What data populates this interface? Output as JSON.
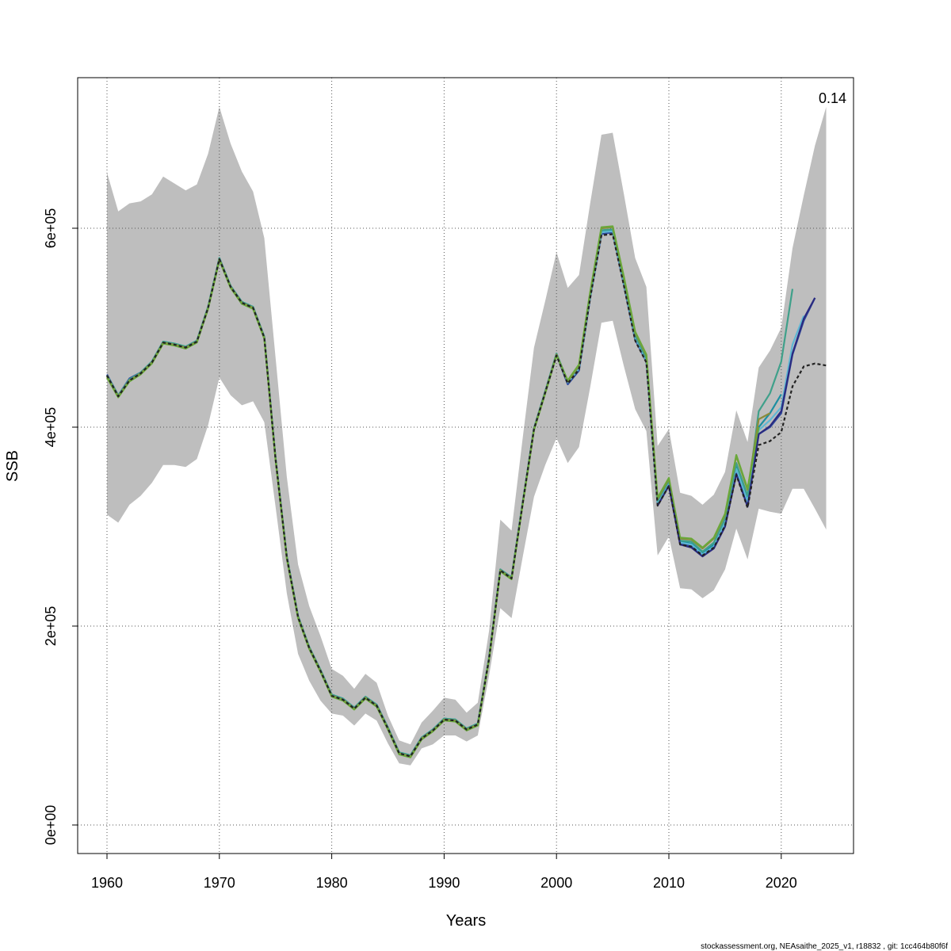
{
  "chart_data": {
    "type": "line",
    "xlabel": "Years",
    "ylabel": "SSB",
    "xlim": [
      1957.5,
      2026.5
    ],
    "ylim": [
      -30000,
      750000
    ],
    "x_ticks": [
      1960,
      1970,
      1980,
      1990,
      2000,
      2010,
      2020
    ],
    "x_tick_labels": [
      "1960",
      "1970",
      "1980",
      "1990",
      "2000",
      "2010",
      "2020"
    ],
    "y_ticks": [
      0,
      200000,
      400000,
      600000
    ],
    "y_tick_labels": [
      "0e+00",
      "2e+05",
      "4e+05",
      "6e+05"
    ],
    "grid": true,
    "annotation": "0.14",
    "credit": "stockassessment.org, NEAsaithe_2025_v1, r18832 , git: 1cc464b80f6f",
    "confidence_band": {
      "color": "#bebebe",
      "x": [
        1960,
        1961,
        1962,
        1963,
        1964,
        1965,
        1966,
        1967,
        1968,
        1969,
        1970,
        1971,
        1972,
        1973,
        1974,
        1975,
        1976,
        1977,
        1978,
        1979,
        1980,
        1981,
        1982,
        1983,
        1984,
        1985,
        1986,
        1987,
        1988,
        1989,
        1990,
        1991,
        1992,
        1993,
        1994,
        1995,
        1996,
        1997,
        1998,
        1999,
        2000,
        2001,
        2002,
        2003,
        2004,
        2005,
        2006,
        2007,
        2008,
        2009,
        2010,
        2011,
        2012,
        2013,
        2014,
        2015,
        2016,
        2017,
        2018,
        2019,
        2020,
        2021,
        2022,
        2023,
        2024
      ],
      "upper": [
        656000,
        617000,
        625000,
        627000,
        634000,
        652000,
        645000,
        638000,
        644000,
        675000,
        722000,
        685000,
        657000,
        637000,
        590000,
        470000,
        350000,
        262000,
        220000,
        190000,
        157000,
        150000,
        137000,
        152000,
        143000,
        110000,
        85000,
        81000,
        103000,
        115000,
        128000,
        126000,
        113000,
        123000,
        195000,
        307000,
        296000,
        390000,
        480000,
        527000,
        576000,
        540000,
        553000,
        625000,
        694000,
        696000,
        634000,
        570000,
        541000,
        381000,
        398000,
        334000,
        331000,
        322000,
        332000,
        355000,
        417000,
        385000,
        460000,
        477000,
        500000,
        580000,
        633000,
        683000,
        722000
      ],
      "lower": [
        312000,
        304000,
        322000,
        331000,
        344000,
        362000,
        362000,
        360000,
        368000,
        402000,
        450000,
        432000,
        422000,
        426000,
        405000,
        320000,
        233000,
        172000,
        145000,
        125000,
        112000,
        110000,
        100000,
        112000,
        105000,
        82000,
        62000,
        60000,
        77000,
        81000,
        90000,
        90000,
        84000,
        90000,
        150000,
        218000,
        208000,
        270000,
        330000,
        362000,
        389000,
        364000,
        380000,
        440000,
        505000,
        507000,
        461000,
        418000,
        396000,
        271000,
        290000,
        238000,
        237000,
        228000,
        236000,
        257000,
        298000,
        267000,
        318000,
        315000,
        313000,
        338000,
        338000,
        318000,
        297000
      ]
    },
    "series": [
      {
        "color": "#2f4b9e",
        "x": [
          1960,
          1961,
          1962,
          1963,
          1964,
          1965,
          1966,
          1967,
          1968,
          1969,
          1970,
          1971,
          1972,
          1973,
          1974,
          1975,
          1976,
          1977,
          1978,
          1979,
          1980,
          1981,
          1982,
          1983,
          1984,
          1985,
          1986,
          1987,
          1988,
          1989,
          1990,
          1991,
          1992,
          1993,
          1994,
          1995,
          1996,
          1997,
          1998,
          1999,
          2000,
          2001,
          2002,
          2003,
          2004,
          2005,
          2006,
          2007,
          2008,
          2009,
          2010,
          2011,
          2012,
          2013,
          2014,
          2015,
          2016,
          2017,
          2018,
          2019,
          2020,
          2021,
          2022,
          2023
        ],
        "values": [
          453000,
          432000,
          449000,
          455000,
          465000,
          485000,
          483000,
          480000,
          486000,
          521000,
          570000,
          541000,
          524000,
          520000,
          490000,
          368000,
          270000,
          210000,
          178000,
          156000,
          131000,
          127000,
          118000,
          128000,
          121000,
          98000,
          73000,
          70000,
          88000,
          96000,
          106000,
          106000,
          97000,
          102000,
          168000,
          257000,
          249000,
          325000,
          398000,
          436000,
          473000,
          443000,
          457000,
          530000,
          594000,
          596000,
          543000,
          488000,
          466000,
          322000,
          342000,
          283000,
          280000,
          271000,
          279000,
          302000,
          355000,
          322000,
          393000,
          400000,
          414000,
          473000,
          507000,
          530000
        ]
      },
      {
        "color": "#1d8fa1",
        "x": [
          1960,
          1961,
          1962,
          1963,
          1964,
          1965,
          1966,
          1967,
          1968,
          1969,
          1970,
          1971,
          1972,
          1973,
          1974,
          1975,
          1976,
          1977,
          1978,
          1979,
          1980,
          1981,
          1982,
          1983,
          1984,
          1985,
          1986,
          1987,
          1988,
          1989,
          1990,
          1991,
          1992,
          1993,
          1994,
          1995,
          1996,
          1997,
          1998,
          1999,
          2000,
          2001,
          2002,
          2003,
          2004,
          2005,
          2006,
          2007,
          2008,
          2009,
          2010,
          2011,
          2012,
          2013,
          2014,
          2015,
          2016,
          2017,
          2018,
          2019,
          2020
        ],
        "values": [
          452000,
          432000,
          448000,
          455000,
          466000,
          486000,
          484000,
          481000,
          487000,
          521000,
          570000,
          542000,
          526000,
          521000,
          491000,
          369000,
          270000,
          210000,
          179000,
          156000,
          131000,
          127000,
          118000,
          129000,
          121000,
          98000,
          73000,
          70000,
          88000,
          96000,
          107000,
          106000,
          97000,
          102000,
          168000,
          257000,
          249000,
          325000,
          399000,
          436000,
          474000,
          446000,
          460000,
          532000,
          597000,
          598000,
          546000,
          491000,
          468000,
          325000,
          345000,
          285000,
          283000,
          273000,
          282000,
          305000,
          360000,
          327000,
          400000,
          414000,
          433000
        ]
      },
      {
        "color": "#5fb7d4",
        "x": [
          1960,
          1961,
          1962,
          1963,
          1964,
          1965,
          1966,
          1967,
          1968,
          1969,
          1970,
          1971,
          1972,
          1973,
          1974,
          1975,
          1976,
          1977,
          1978,
          1979,
          1980,
          1981,
          1982,
          1983,
          1984,
          1985,
          1986,
          1987,
          1988,
          1989,
          1990,
          1991,
          1992,
          1993,
          1994,
          1995,
          1996,
          1997,
          1998,
          1999,
          2000,
          2001,
          2002,
          2003,
          2004,
          2005,
          2006,
          2007,
          2008,
          2009,
          2010,
          2011,
          2012,
          2013,
          2014,
          2015,
          2016,
          2017,
          2018,
          2019,
          2020,
          2021,
          2022
        ],
        "values": [
          452000,
          432000,
          448000,
          455000,
          466000,
          486000,
          484000,
          481000,
          487000,
          521000,
          570000,
          542000,
          526000,
          521000,
          491000,
          369000,
          270000,
          210000,
          179000,
          156000,
          131000,
          127000,
          118000,
          129000,
          121000,
          98000,
          73000,
          70000,
          88000,
          96000,
          107000,
          106000,
          97000,
          102000,
          168000,
          257000,
          249000,
          325000,
          399000,
          436000,
          474000,
          445000,
          459000,
          531000,
          596000,
          597000,
          545000,
          490000,
          467000,
          324000,
          344000,
          284000,
          282000,
          272000,
          280000,
          304000,
          358000,
          325000,
          397000,
          407000,
          420000,
          483000,
          512000
        ]
      },
      {
        "color": "#3fa08a",
        "x": [
          1960,
          1961,
          1962,
          1963,
          1964,
          1965,
          1966,
          1967,
          1968,
          1969,
          1970,
          1971,
          1972,
          1973,
          1974,
          1975,
          1976,
          1977,
          1978,
          1979,
          1980,
          1981,
          1982,
          1983,
          1984,
          1985,
          1986,
          1987,
          1988,
          1989,
          1990,
          1991,
          1992,
          1993,
          1994,
          1995,
          1996,
          1997,
          1998,
          1999,
          2000,
          2001,
          2002,
          2003,
          2004,
          2005,
          2006,
          2007,
          2008,
          2009,
          2010,
          2011,
          2012,
          2013,
          2014,
          2015,
          2016,
          2017,
          2018,
          2019,
          2020,
          2021
        ],
        "values": [
          452000,
          432000,
          448000,
          455000,
          466000,
          486000,
          484000,
          481000,
          487000,
          521000,
          570000,
          542000,
          526000,
          521000,
          491000,
          369000,
          270000,
          210000,
          179000,
          156000,
          131000,
          127000,
          118000,
          129000,
          121000,
          98000,
          73000,
          70000,
          88000,
          96000,
          107000,
          106000,
          97000,
          102000,
          168000,
          257000,
          249000,
          325000,
          399000,
          436000,
          474000,
          446000,
          461000,
          533000,
          598000,
          599000,
          547000,
          492000,
          469000,
          326000,
          346000,
          286000,
          285000,
          275000,
          284000,
          308000,
          364000,
          331000,
          416000,
          434000,
          466000,
          539000
        ]
      },
      {
        "color": "#8b8b3a",
        "x": [
          1960,
          1961,
          1962,
          1963,
          1964,
          1965,
          1966,
          1967,
          1968,
          1969,
          1970,
          1971,
          1972,
          1973,
          1974,
          1975,
          1976,
          1977,
          1978,
          1979,
          1980,
          1981,
          1982,
          1983,
          1984,
          1985,
          1986,
          1987,
          1988,
          1989,
          1990,
          1991,
          1992,
          1993,
          1994,
          1995,
          1996,
          1997,
          1998,
          1999,
          2000,
          2001,
          2002,
          2003,
          2004,
          2005,
          2006,
          2007,
          2008,
          2009,
          2010,
          2011,
          2012,
          2013,
          2014,
          2015,
          2016,
          2017,
          2018,
          2019
        ],
        "values": [
          451000,
          431000,
          447000,
          454000,
          465000,
          485000,
          483000,
          480000,
          486000,
          520000,
          569000,
          541000,
          525000,
          520000,
          490000,
          368000,
          269000,
          209000,
          178000,
          155000,
          130000,
          126000,
          117000,
          128000,
          120000,
          97000,
          72000,
          69000,
          87000,
          95000,
          106000,
          105000,
          96000,
          101000,
          167000,
          256000,
          248000,
          324000,
          398000,
          435000,
          473000,
          446000,
          462000,
          535000,
          600000,
          601000,
          550000,
          495000,
          472000,
          328000,
          348000,
          288000,
          287000,
          278000,
          288000,
          312000,
          371000,
          337000,
          408000,
          414000
        ]
      },
      {
        "color": "#6aa83a",
        "x": [
          1960,
          1961,
          1962,
          1963,
          1964,
          1965,
          1966,
          1967,
          1968,
          1969,
          1970,
          1971,
          1972,
          1973,
          1974,
          1975,
          1976,
          1977,
          1978,
          1979,
          1980,
          1981,
          1982,
          1983,
          1984,
          1985,
          1986,
          1987,
          1988,
          1989,
          1990,
          1991,
          1992,
          1993,
          1994,
          1995,
          1996,
          1997,
          1998,
          1999,
          2000,
          2001,
          2002,
          2003,
          2004,
          2005,
          2006,
          2007,
          2008,
          2009,
          2010,
          2011,
          2012,
          2013,
          2014,
          2015,
          2016,
          2017,
          2018
        ],
        "values": [
          450000,
          430000,
          446000,
          453000,
          464000,
          484000,
          482000,
          479000,
          485000,
          519000,
          568000,
          540000,
          524000,
          519000,
          489000,
          367000,
          268000,
          208000,
          177000,
          154000,
          129000,
          125000,
          116000,
          127000,
          119000,
          96000,
          71000,
          68000,
          86000,
          94000,
          105000,
          104000,
          95000,
          100000,
          166000,
          255000,
          247000,
          323000,
          397000,
          434000,
          472000,
          447000,
          463000,
          536000,
          601000,
          602000,
          551000,
          496000,
          473000,
          329000,
          349000,
          289000,
          288000,
          279000,
          289000,
          313000,
          372000,
          338000,
          400000
        ]
      },
      {
        "color": "#2a2a80",
        "x": [
          2009,
          2010,
          2011,
          2012,
          2013,
          2014,
          2015,
          2016,
          2017,
          2018,
          2019,
          2020,
          2021,
          2022,
          2023
        ],
        "values": [
          321000,
          341000,
          282000,
          279000,
          270000,
          278000,
          300000,
          353000,
          320000,
          393000,
          401000,
          416000,
          474000,
          509000,
          530000
        ]
      },
      {
        "color": "#222222",
        "dashed": true,
        "x": [
          1960,
          1961,
          1962,
          1963,
          1964,
          1965,
          1966,
          1967,
          1968,
          1969,
          1970,
          1971,
          1972,
          1973,
          1974,
          1975,
          1976,
          1977,
          1978,
          1979,
          1980,
          1981,
          1982,
          1983,
          1984,
          1985,
          1986,
          1987,
          1988,
          1989,
          1990,
          1991,
          1992,
          1993,
          1994,
          1995,
          1996,
          1997,
          1998,
          1999,
          2000,
          2001,
          2002,
          2003,
          2004,
          2005,
          2006,
          2007,
          2008,
          2009,
          2010,
          2011,
          2012,
          2013,
          2014,
          2015,
          2016,
          2017,
          2018,
          2019,
          2020,
          2021,
          2022,
          2023,
          2024
        ],
        "values": [
          452000,
          431000,
          447000,
          454000,
          465000,
          485000,
          483000,
          480000,
          486000,
          520000,
          569000,
          541000,
          525000,
          520000,
          490000,
          368000,
          269000,
          209000,
          178000,
          155000,
          130000,
          126000,
          117000,
          128000,
          120000,
          97000,
          72000,
          69000,
          87000,
          95000,
          106000,
          105000,
          96000,
          101000,
          167000,
          256000,
          248000,
          324000,
          398000,
          435000,
          472000,
          444000,
          458000,
          530000,
          593000,
          594000,
          542000,
          487000,
          465000,
          321000,
          341000,
          282000,
          280000,
          271000,
          279000,
          301000,
          352000,
          319000,
          382000,
          386000,
          395000,
          441000,
          461000,
          464000,
          462000
        ]
      }
    ]
  }
}
